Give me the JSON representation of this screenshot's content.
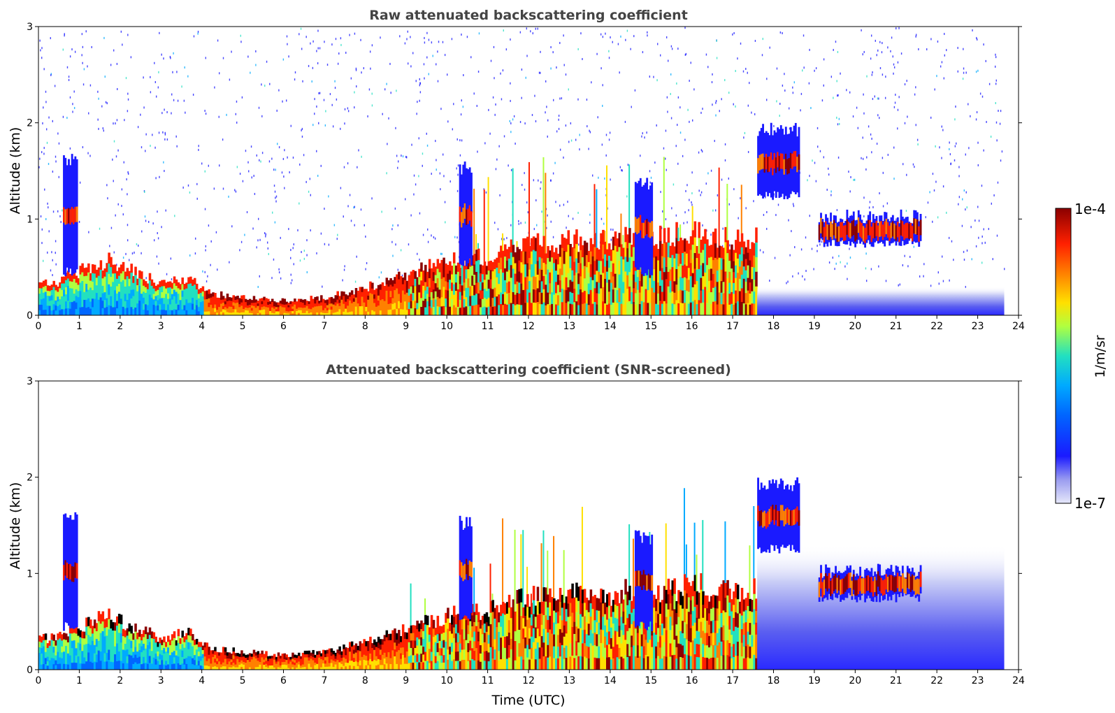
{
  "chart_data": [
    {
      "type": "heatmap",
      "title": "Raw attenuated backscattering coefficient",
      "xlabel": "",
      "ylabel": "Altitude (km)",
      "xlim": [
        0,
        24
      ],
      "ylim": [
        0,
        3
      ],
      "x_ticks": [
        "0",
        "1",
        "2",
        "3",
        "4",
        "5",
        "6",
        "7",
        "8",
        "9",
        "10",
        "11",
        "12",
        "13",
        "14",
        "15",
        "16",
        "17",
        "18",
        "19",
        "20",
        "21",
        "22",
        "23",
        "24"
      ],
      "y_ticks": [
        "0",
        "1",
        "2",
        "3"
      ],
      "data_end_time": 23.65,
      "boundary_layer_top_km": [
        [
          0,
          0.3
        ],
        [
          0.5,
          0.35
        ],
        [
          1,
          0.45
        ],
        [
          1.7,
          0.55
        ],
        [
          2.5,
          0.4
        ],
        [
          3,
          0.32
        ],
        [
          3.7,
          0.38
        ],
        [
          4.2,
          0.22
        ],
        [
          5,
          0.18
        ],
        [
          6,
          0.15
        ],
        [
          7,
          0.18
        ],
        [
          8,
          0.28
        ],
        [
          9,
          0.42
        ],
        [
          10,
          0.55
        ],
        [
          11,
          0.6
        ],
        [
          12,
          0.75
        ],
        [
          13,
          0.75
        ],
        [
          14,
          0.78
        ],
        [
          15,
          0.8
        ],
        [
          16,
          0.85
        ],
        [
          17,
          0.78
        ],
        [
          17.6,
          0.8
        ]
      ],
      "cloud_layers": [
        {
          "t_start": 0.6,
          "t_end": 0.95,
          "z_bottom": 0.4,
          "z_top": 1.7
        },
        {
          "t_start": 10.3,
          "t_end": 10.6,
          "z_bottom": 0.5,
          "z_top": 1.6
        },
        {
          "t_start": 14.6,
          "t_end": 15.0,
          "z_bottom": 0.4,
          "z_top": 1.45
        },
        {
          "t_start": 17.6,
          "t_end": 18.6,
          "z_bottom": 1.2,
          "z_top": 2.0
        },
        {
          "t_start": 19.1,
          "t_end": 21.6,
          "z_bottom": 0.7,
          "z_top": 1.1
        }
      ]
    },
    {
      "type": "heatmap",
      "title": "Attenuated backscattering coefficient (SNR-screened)",
      "xlabel": "Time (UTC)",
      "ylabel": "Altitude (km)",
      "xlim": [
        0,
        24
      ],
      "ylim": [
        0,
        3
      ],
      "x_ticks": [
        "0",
        "1",
        "2",
        "3",
        "4",
        "5",
        "6",
        "7",
        "8",
        "9",
        "10",
        "11",
        "12",
        "13",
        "14",
        "15",
        "16",
        "17",
        "18",
        "19",
        "20",
        "21",
        "22",
        "23",
        "24"
      ],
      "y_ticks": [
        "0",
        "1",
        "2",
        "3"
      ],
      "data_end_time": 23.65
    }
  ],
  "colorbar": {
    "label": "1/m/sr",
    "max_label": "1e-4",
    "min_label": "1e-7",
    "colormap": "jet",
    "stops": [
      "#e6e8fa",
      "#1a1aff",
      "#00aaff",
      "#22e0c0",
      "#b0ff40",
      "#ffe000",
      "#ff8000",
      "#ff2000",
      "#8b0000"
    ]
  }
}
